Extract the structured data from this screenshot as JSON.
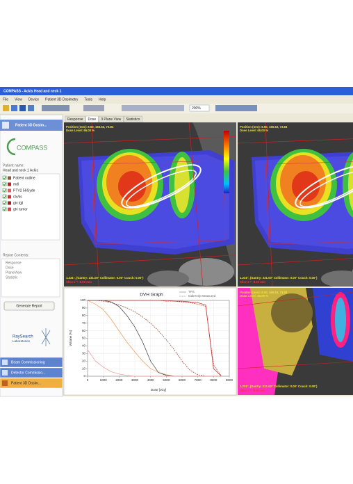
{
  "window": {
    "title": "COMPASS - Ackis  Head and neck 1",
    "menu": [
      "File",
      "View",
      "Device",
      "Patient 3D Dosimetry",
      "Tools",
      "Help"
    ],
    "zoom": "200%"
  },
  "sidebar": {
    "header": "Patient 3D Dosim...",
    "logo": "COMPASS",
    "patient_label": "Patient name:",
    "patient_name": "Head and neck 1 Ackis",
    "structures": [
      "Patient outline",
      "mdl",
      "PTV2 56Gyde",
      "ctv/ks",
      "gtv lgjl",
      "gtv tumor"
    ],
    "report_label": "Report Contents:",
    "report_items": [
      "Response",
      "Dose",
      "PlaneView",
      "Statistic"
    ],
    "button": "Generate Report",
    "brand": [
      "RaySearch",
      "Laboratories"
    ],
    "nav": [
      "Beam Commissioning",
      "Detector Commissio...",
      "Patient 3D Dosim..."
    ]
  },
  "tabs": [
    "Response",
    "Dose",
    "3 Plane View",
    "Statistics"
  ],
  "views": [
    {
      "position": "Position (mm): 8.50, 166.53, 73.84",
      "dose_level": "Dose Level: 65.00 %",
      "angles": "1.231°, (Gantry: 231.00° Collimator: 0.00° Couch: 0.00°)",
      "slice": "Slice z = -8.00 mm"
    },
    {
      "position": "Position (mm): 8.50, 166.53, 73.84",
      "dose_level": "Dose Level: 65.00 %",
      "angles": "1.231°, (Gantry: 231.00° Collimator: 0.00° Couch: 0.00°)",
      "slice": "Slice z = -8.00 mm"
    },
    {
      "position": "Position (mm): 8.50, 166.53, 73.84",
      "dose_level": "Dose Level: 65.00 %",
      "angles": "1.231°, (Gantry: 231.00° Collimator: 0.00° Couch: 0.00°)",
      "slice": "Slice z = -8.00 mm"
    }
  ],
  "chart_data": {
    "type": "line",
    "title": "DVH Graph",
    "legend_labels": [
      "TPS",
      "Indirectly Measured"
    ],
    "x_label": "Dose [cGy]",
    "y_label": "Volume [%]",
    "x": [
      0,
      500,
      1000,
      1500,
      2000,
      2500,
      3000,
      3500,
      4000,
      4500,
      5000,
      5500,
      6000,
      6500,
      7000,
      7500,
      8000,
      8500
    ],
    "series": [
      {
        "color": "#c0302a",
        "dash": false,
        "values": [
          100,
          100,
          100,
          100,
          100,
          100,
          100,
          100,
          100,
          100,
          100,
          99,
          99,
          98,
          97,
          94,
          10,
          0
        ]
      },
      {
        "color": "#d04040",
        "dash": true,
        "values": [
          100,
          100,
          100,
          100,
          100,
          100,
          100,
          100,
          100,
          100,
          99,
          99,
          98,
          97,
          95,
          92,
          15,
          0
        ]
      },
      {
        "color": "#f0a060",
        "dash": false,
        "values": [
          100,
          95,
          88,
          75,
          60,
          45,
          32,
          20,
          10,
          5,
          2,
          0,
          0,
          0,
          0,
          0,
          0,
          0
        ]
      },
      {
        "color": "#505050",
        "dash": false,
        "values": [
          100,
          100,
          100,
          98,
          92,
          80,
          65,
          45,
          20,
          5,
          1,
          0,
          0,
          0,
          0,
          0,
          0,
          0
        ]
      },
      {
        "color": "#a05040",
        "dash": true,
        "values": [
          100,
          100,
          99,
          97,
          94,
          90,
          85,
          78,
          70,
          60,
          48,
          35,
          20,
          8,
          2,
          0,
          0,
          0
        ]
      },
      {
        "color": "#f0a0a0",
        "dash": false,
        "values": [
          35,
          20,
          12,
          6,
          3,
          1,
          0,
          0,
          0,
          0,
          0,
          0,
          0,
          0,
          0,
          0,
          0,
          0
        ]
      }
    ],
    "xlim": [
      0,
      9000
    ],
    "ylim": [
      0,
      100
    ],
    "xticks": [
      0,
      1000,
      2000,
      3000,
      4000,
      5000,
      6000,
      7000,
      8000,
      9000
    ],
    "yticks": [
      0,
      10,
      20,
      30,
      40,
      50,
      60,
      70,
      80,
      90,
      100
    ],
    "grid": true
  }
}
